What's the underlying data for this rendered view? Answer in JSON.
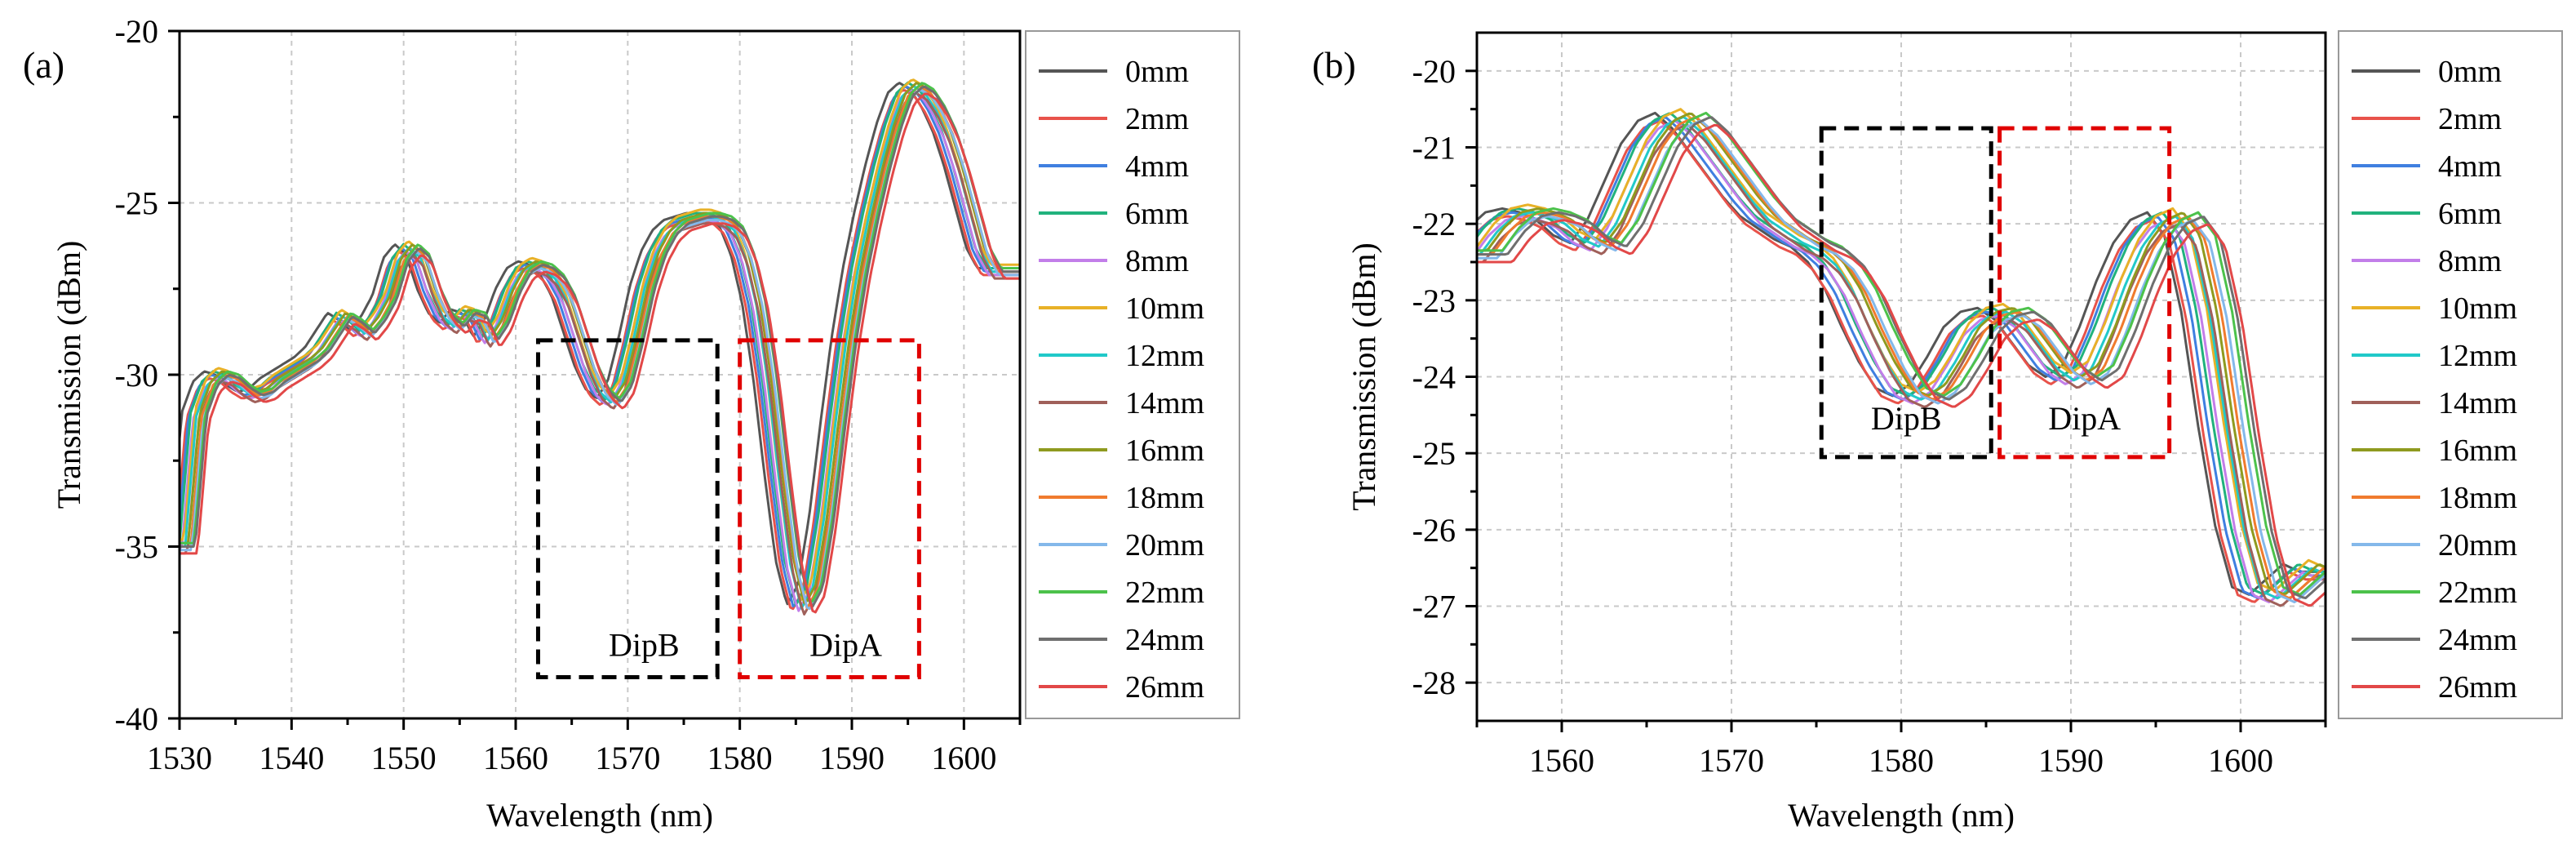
{
  "figure": {
    "panels": [
      "(a)",
      "(b)"
    ]
  },
  "chart_data": [
    {
      "type": "line",
      "panel_label": "(a)",
      "title": "",
      "xlabel": "Wavelength (nm)",
      "ylabel": "Transmission (dBm)",
      "xlim": [
        1530,
        1605
      ],
      "ylim": [
        -40,
        -20
      ],
      "xticks": [
        1530,
        1540,
        1550,
        1560,
        1570,
        1580,
        1590,
        1600
      ],
      "yticks": [
        -40,
        -35,
        -30,
        -25,
        -20
      ],
      "grid": true,
      "legend_position": "right",
      "series_names": [
        "0mm",
        "2mm",
        "4mm",
        "6mm",
        "8mm",
        "10mm",
        "12mm",
        "14mm",
        "16mm",
        "18mm",
        "20mm",
        "22mm",
        "24mm",
        "26mm"
      ],
      "series_colors": [
        "#555555",
        "#e8524a",
        "#3f7fe0",
        "#21b27d",
        "#c27ee9",
        "#e8b127",
        "#21c9c9",
        "#a0605a",
        "#8f9a1f",
        "#f07b2e",
        "#84b8ea",
        "#4cc24b",
        "#6f6f6f",
        "#e24848"
      ],
      "base_curve": {
        "x": [
          1530,
          1531,
          1532,
          1533,
          1534,
          1535,
          1536,
          1537,
          1538,
          1539,
          1540,
          1541,
          1542,
          1543,
          1544,
          1545,
          1546,
          1547,
          1548,
          1549,
          1550,
          1551,
          1552,
          1553,
          1554,
          1555,
          1556,
          1557,
          1558,
          1559,
          1560,
          1561,
          1562,
          1563,
          1564,
          1565,
          1566,
          1567,
          1568,
          1569,
          1570,
          1571,
          1572,
          1573,
          1574,
          1575,
          1576,
          1577,
          1578,
          1579,
          1580,
          1581,
          1582,
          1583,
          1584,
          1585,
          1586,
          1587,
          1588,
          1589,
          1590,
          1591,
          1592,
          1593,
          1594,
          1595,
          1596,
          1597,
          1598,
          1599,
          1600,
          1601,
          1602,
          1603,
          1604,
          1605
        ],
        "y": [
          -35.0,
          -31.2,
          -30.3,
          -30.0,
          -30.1,
          -30.4,
          -30.6,
          -30.5,
          -30.2,
          -30.0,
          -29.8,
          -29.6,
          -29.3,
          -28.8,
          -28.3,
          -28.5,
          -28.8,
          -28.4,
          -27.8,
          -26.7,
          -26.3,
          -26.6,
          -27.6,
          -28.3,
          -28.6,
          -28.2,
          -28.3,
          -29.0,
          -28.5,
          -27.6,
          -27.0,
          -26.8,
          -26.9,
          -27.2,
          -27.8,
          -28.8,
          -29.8,
          -30.5,
          -30.8,
          -30.3,
          -29.0,
          -27.5,
          -26.5,
          -25.9,
          -25.6,
          -25.5,
          -25.4,
          -25.4,
          -25.5,
          -25.8,
          -26.6,
          -28.0,
          -30.2,
          -33.0,
          -35.5,
          -36.8,
          -36.2,
          -34.2,
          -31.5,
          -29.0,
          -27.0,
          -25.4,
          -24.0,
          -22.8,
          -21.9,
          -21.6,
          -21.8,
          -22.3,
          -23.0,
          -24.0,
          -25.2,
          -26.4,
          -27.0,
          -27.0,
          -27.0,
          -27.0
        ]
      },
      "series_shifts_nm": [
        -0.8,
        -0.4,
        -0.2,
        0.0,
        0.2,
        0.4,
        0.5,
        0.7,
        0.8,
        1.0,
        1.1,
        1.3,
        1.4,
        1.6
      ],
      "series_offsets_db": [
        0.1,
        -0.1,
        0.0,
        0.1,
        -0.1,
        0.2,
        0.0,
        -0.2,
        0.1,
        0.0,
        -0.1,
        0.1,
        0.0,
        -0.2
      ],
      "annotations": [
        {
          "label": "DipB",
          "x_range": [
            1562,
            1578
          ],
          "y_range": [
            -38.8,
            -29.0
          ],
          "color": "#000000",
          "style": "dashed"
        },
        {
          "label": "DipA",
          "x_range": [
            1580,
            1596
          ],
          "y_range": [
            -38.8,
            -29.0
          ],
          "color": "#e00000",
          "style": "dashed"
        }
      ]
    },
    {
      "type": "line",
      "panel_label": "(b)",
      "title": "",
      "xlabel": "Wavelength (nm)",
      "ylabel": "Transmission (dBm)",
      "xlim": [
        1555,
        1605
      ],
      "ylim": [
        -28.5,
        -19.5
      ],
      "xticks": [
        1560,
        1570,
        1580,
        1590,
        1600
      ],
      "yticks": [
        -28,
        -27,
        -26,
        -25,
        -24,
        -23,
        -22,
        -21,
        -20
      ],
      "grid": true,
      "legend_position": "right",
      "series_names": [
        "0mm",
        "2mm",
        "4mm",
        "6mm",
        "8mm",
        "10mm",
        "12mm",
        "14mm",
        "16mm",
        "18mm",
        "20mm",
        "22mm",
        "24mm",
        "26mm"
      ],
      "series_colors": [
        "#555555",
        "#e8524a",
        "#3f7fe0",
        "#21b27d",
        "#c27ee9",
        "#e8b127",
        "#21c9c9",
        "#a0605a",
        "#8f9a1f",
        "#f07b2e",
        "#84b8ea",
        "#4cc24b",
        "#6f6f6f",
        "#e24848"
      ],
      "base_curve": {
        "x": [
          1555,
          1556,
          1557,
          1558,
          1559,
          1560,
          1561,
          1562,
          1563,
          1564,
          1565,
          1566,
          1567,
          1568,
          1569,
          1570,
          1571,
          1572,
          1573,
          1574,
          1575,
          1576,
          1577,
          1578,
          1579,
          1580,
          1581,
          1582,
          1583,
          1584,
          1585,
          1586,
          1587,
          1588,
          1589,
          1590,
          1591,
          1592,
          1593,
          1594,
          1595,
          1596,
          1597,
          1598,
          1599,
          1600,
          1601,
          1602,
          1603,
          1604,
          1605
        ],
        "y": [
          -22.4,
          -22.1,
          -21.9,
          -21.85,
          -21.9,
          -22.0,
          -22.2,
          -22.3,
          -22.0,
          -21.5,
          -21.0,
          -20.7,
          -20.6,
          -20.8,
          -21.1,
          -21.4,
          -21.7,
          -21.95,
          -22.1,
          -22.25,
          -22.35,
          -22.55,
          -22.9,
          -23.4,
          -23.85,
          -24.2,
          -24.3,
          -24.15,
          -23.8,
          -23.4,
          -23.2,
          -23.15,
          -23.3,
          -23.6,
          -23.9,
          -24.05,
          -23.9,
          -23.4,
          -22.8,
          -22.3,
          -22.0,
          -21.9,
          -22.2,
          -23.2,
          -24.7,
          -26.0,
          -26.8,
          -26.9,
          -26.7,
          -26.5,
          -26.6
        ]
      },
      "series_shifts_nm": [
        -1.5,
        -1.2,
        -0.9,
        -0.6,
        -0.3,
        0.0,
        0.2,
        0.4,
        0.6,
        0.9,
        1.2,
        1.5,
        1.8,
        2.1
      ],
      "series_offsets_db": [
        0.05,
        -0.05,
        0.0,
        0.05,
        -0.05,
        0.1,
        0.0,
        -0.1,
        0.05,
        0.0,
        -0.05,
        0.05,
        0.0,
        -0.1
      ],
      "annotations": [
        {
          "label": "DipB",
          "x_range": [
            1575.3,
            1585.3
          ],
          "y_range": [
            -25.05,
            -20.75
          ],
          "color": "#000000",
          "style": "dashed"
        },
        {
          "label": "DipA",
          "x_range": [
            1585.8,
            1595.8
          ],
          "y_range": [
            -25.05,
            -20.75
          ],
          "color": "#e00000",
          "style": "dashed"
        }
      ]
    }
  ]
}
